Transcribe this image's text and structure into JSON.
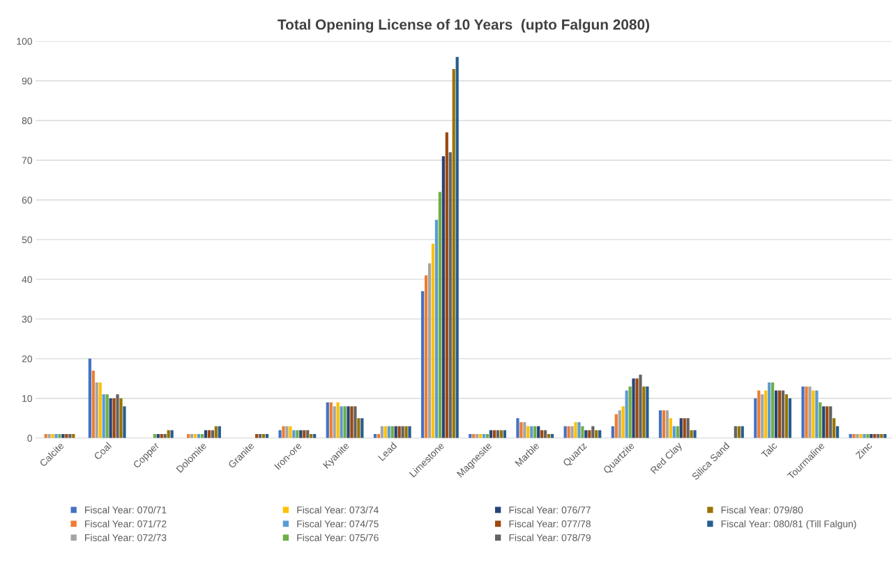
{
  "chart_data": {
    "type": "bar",
    "title": "Total Opening License of 10 Years  (upto Falgun 2080)",
    "categories": [
      "Calcite",
      "Coal",
      "Copper",
      "Dolomite",
      "Granite",
      "Iron-ore",
      "Kyanite",
      "Lead",
      "Limestone",
      "Magnesite",
      "Marble",
      "Quartz",
      "Quartzite",
      "Red Clay",
      "Silica Sand",
      "Talc",
      "Tourmaline",
      "Zinc"
    ],
    "series": [
      {
        "name": "Fiscal Year: 070/71",
        "color": "#4472c4",
        "values": [
          0,
          20,
          0,
          0,
          0,
          2,
          9,
          1,
          37,
          1,
          5,
          3,
          3,
          7,
          0,
          10,
          13,
          1
        ]
      },
      {
        "name": "Fiscal Year: 071/72",
        "color": "#ed7d31",
        "values": [
          1,
          17,
          0,
          1,
          0,
          3,
          9,
          1,
          41,
          1,
          4,
          3,
          6,
          7,
          0,
          12,
          13,
          1
        ]
      },
      {
        "name": "Fiscal Year: 072/73",
        "color": "#a5a5a5",
        "values": [
          1,
          14,
          0,
          1,
          0,
          3,
          8,
          3,
          44,
          1,
          4,
          3,
          7,
          7,
          0,
          11,
          13,
          1
        ]
      },
      {
        "name": "Fiscal Year: 073/74",
        "color": "#ffc000",
        "values": [
          1,
          14,
          0,
          1,
          0,
          3,
          9,
          3,
          49,
          1,
          3,
          4,
          8,
          5,
          0,
          12,
          12,
          1
        ]
      },
      {
        "name": "Fiscal Year: 074/75",
        "color": "#5b9bd5",
        "values": [
          1,
          11,
          0,
          1,
          0,
          2,
          8,
          3,
          55,
          1,
          3,
          4,
          12,
          3,
          0,
          14,
          12,
          1
        ]
      },
      {
        "name": "Fiscal Year: 075/76",
        "color": "#70ad47",
        "values": [
          1,
          11,
          1,
          1,
          0,
          2,
          8,
          3,
          62,
          1,
          3,
          3,
          13,
          3,
          0,
          14,
          9,
          1
        ]
      },
      {
        "name": "Fiscal Year: 076/77",
        "color": "#264478",
        "values": [
          1,
          10,
          1,
          2,
          0,
          2,
          8,
          3,
          71,
          2,
          3,
          2,
          15,
          5,
          0,
          12,
          8,
          1
        ]
      },
      {
        "name": "Fiscal Year: 077/78",
        "color": "#9e480e",
        "values": [
          1,
          10,
          1,
          2,
          1,
          2,
          8,
          3,
          77,
          2,
          2,
          2,
          15,
          5,
          0,
          12,
          8,
          1
        ]
      },
      {
        "name": "Fiscal Year: 078/79",
        "color": "#636363",
        "values": [
          1,
          11,
          1,
          2,
          1,
          2,
          8,
          3,
          72,
          2,
          2,
          3,
          16,
          5,
          3,
          12,
          8,
          1
        ]
      },
      {
        "name": "Fiscal Year: 079/80",
        "color": "#997300",
        "values": [
          1,
          10,
          2,
          3,
          1,
          1,
          5,
          3,
          93,
          2,
          1,
          2,
          13,
          2,
          3,
          11,
          5,
          1
        ]
      },
      {
        "name": "Fiscal Year: 080/81 (Till Falgun)",
        "color": "#255e91",
        "values": [
          0,
          8,
          2,
          3,
          1,
          1,
          5,
          3,
          96,
          2,
          1,
          2,
          13,
          2,
          3,
          10,
          3,
          1
        ]
      }
    ],
    "ylim": [
      0,
      100
    ],
    "yticks": [
      0,
      10,
      20,
      30,
      40,
      50,
      60,
      70,
      80,
      90,
      100
    ],
    "grid": "y",
    "legend": "bottom"
  }
}
